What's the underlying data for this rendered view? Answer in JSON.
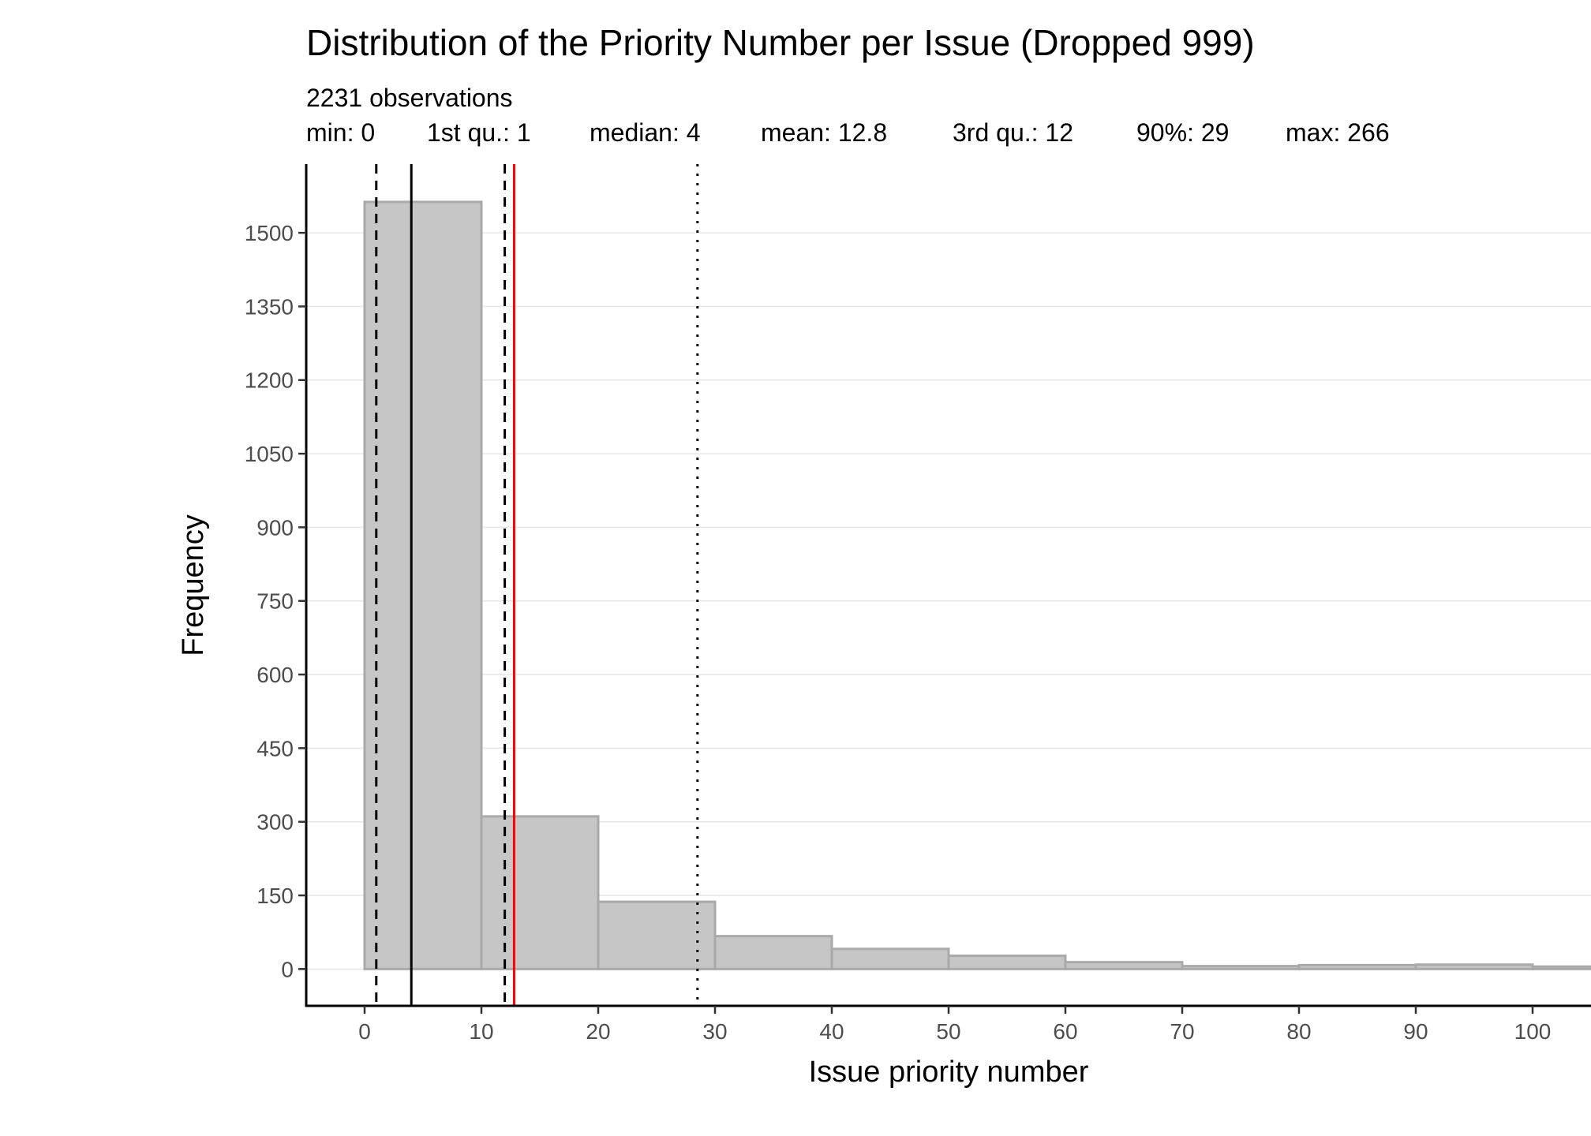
{
  "chart_data": {
    "type": "bar",
    "title": "Distribution of the Priority Number per Issue (Dropped 999)",
    "subtitle_line1": "2231 observations",
    "stats": [
      {
        "label": "min: 0"
      },
      {
        "label": "1st qu.: 1"
      },
      {
        "label": "median: 4"
      },
      {
        "label": "mean: 12.8"
      },
      {
        "label": "3rd qu.: 12"
      },
      {
        "label": "90%: 29"
      },
      {
        "label": "max: 266"
      }
    ],
    "xlabel": "Issue priority number",
    "ylabel": "Frequency",
    "xlim": [
      -5,
      105
    ],
    "ylim": [
      -75,
      1640
    ],
    "xticks": [
      0,
      10,
      20,
      30,
      40,
      50,
      60,
      70,
      80,
      90,
      100
    ],
    "yticks": [
      0,
      150,
      300,
      450,
      600,
      750,
      900,
      1050,
      1200,
      1350,
      1500
    ],
    "bins": [
      {
        "start": 0,
        "end": 10,
        "count": 1563
      },
      {
        "start": 10,
        "end": 20,
        "count": 311
      },
      {
        "start": 20,
        "end": 30,
        "count": 137
      },
      {
        "start": 30,
        "end": 40,
        "count": 67
      },
      {
        "start": 40,
        "end": 50,
        "count": 41
      },
      {
        "start": 50,
        "end": 60,
        "count": 27
      },
      {
        "start": 60,
        "end": 70,
        "count": 14
      },
      {
        "start": 70,
        "end": 80,
        "count": 6
      },
      {
        "start": 80,
        "end": 90,
        "count": 8
      },
      {
        "start": 90,
        "end": 100,
        "count": 9
      },
      {
        "start": 100,
        "end": 110,
        "count": 5
      }
    ],
    "vlines": [
      {
        "name": "1st-quartile-line",
        "x": 1,
        "style": "dashed",
        "color": "#000000"
      },
      {
        "name": "median-line",
        "x": 4,
        "style": "solid",
        "color": "#000000"
      },
      {
        "name": "3rd-quartile-line",
        "x": 12,
        "style": "dashed",
        "color": "#000000"
      },
      {
        "name": "mean-line",
        "x": 12.8,
        "style": "solid",
        "color": "#ff0000"
      },
      {
        "name": "90-percentile-line",
        "x": 28.5,
        "style": "dotted",
        "color": "#000000"
      }
    ],
    "bar_fill": "#c6c6c6",
    "bar_stroke": "#a9a9a9",
    "grid": "horizontal",
    "grid_color": "#e6e6e6"
  }
}
